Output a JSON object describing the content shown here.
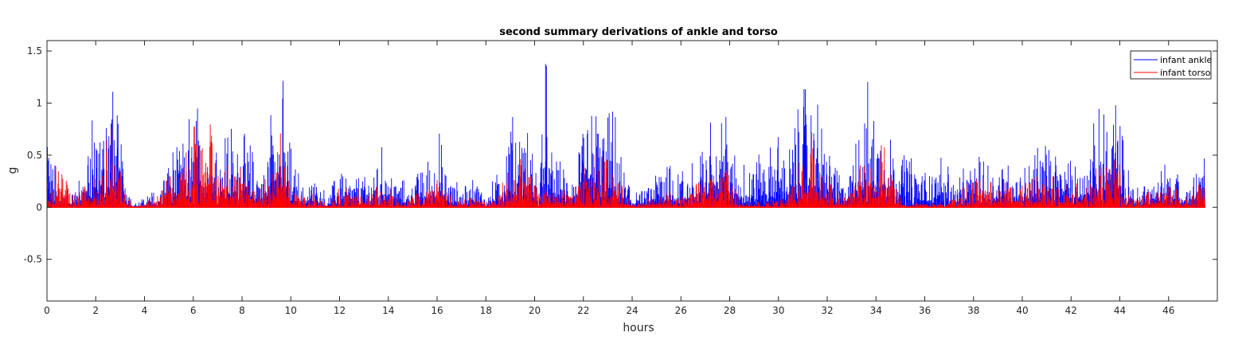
{
  "chart_data": {
    "type": "line",
    "title": "second summary derivations of ankle and torso",
    "xlabel": "hours",
    "ylabel": "g",
    "xlim": [
      0,
      48
    ],
    "ylim": [
      -0.9,
      1.6
    ],
    "x_ticks": [
      0,
      2,
      4,
      6,
      8,
      10,
      12,
      14,
      16,
      18,
      20,
      22,
      24,
      26,
      28,
      30,
      32,
      34,
      36,
      38,
      40,
      42,
      44,
      46
    ],
    "y_ticks": [
      -0.5,
      0,
      0.5,
      1,
      1.5
    ],
    "y_tick_labels": [
      "-0.5",
      "0",
      "0.5",
      "1",
      "1.5"
    ],
    "legend_position": "top-right",
    "grid": false,
    "series": [
      {
        "name": "infant ankle",
        "color": "#0000ff",
        "envelope": [
          [
            0.0,
            0.85
          ],
          [
            0.5,
            0.25
          ],
          [
            1.0,
            0.15
          ],
          [
            1.5,
            0.35
          ],
          [
            1.7,
            0.9
          ],
          [
            2.0,
            0.8
          ],
          [
            2.3,
            1.0
          ],
          [
            2.6,
            1.36
          ],
          [
            2.9,
            0.9
          ],
          [
            3.2,
            0.5
          ],
          [
            3.5,
            0.05
          ],
          [
            4.0,
            0.1
          ],
          [
            4.5,
            0.2
          ],
          [
            5.0,
            0.55
          ],
          [
            5.5,
            0.6
          ],
          [
            6.0,
            1.05
          ],
          [
            6.3,
            1.0
          ],
          [
            6.6,
            1.2
          ],
          [
            7.0,
            0.75
          ],
          [
            7.5,
            0.8
          ],
          [
            8.0,
            0.75
          ],
          [
            8.4,
            0.6
          ],
          [
            8.8,
            0.35
          ],
          [
            9.2,
            1.1
          ],
          [
            9.6,
            1.4
          ],
          [
            10.0,
            0.6
          ],
          [
            10.5,
            0.2
          ],
          [
            11.0,
            0.35
          ],
          [
            11.5,
            0.1
          ],
          [
            12.0,
            0.4
          ],
          [
            12.5,
            0.3
          ],
          [
            13.0,
            0.3
          ],
          [
            13.5,
            0.4
          ],
          [
            13.8,
            0.65
          ],
          [
            14.2,
            0.3
          ],
          [
            14.8,
            0.25
          ],
          [
            15.5,
            0.4
          ],
          [
            16.0,
            0.8
          ],
          [
            16.5,
            0.35
          ],
          [
            17.0,
            0.2
          ],
          [
            17.5,
            0.35
          ],
          [
            18.0,
            0.15
          ],
          [
            18.5,
            0.35
          ],
          [
            19.0,
            0.9
          ],
          [
            19.3,
            0.95
          ],
          [
            19.8,
            0.7
          ],
          [
            20.2,
            0.4
          ],
          [
            20.45,
            1.6
          ],
          [
            20.6,
            0.6
          ],
          [
            21.0,
            0.45
          ],
          [
            21.5,
            0.35
          ],
          [
            22.0,
            0.75
          ],
          [
            22.5,
            1.1
          ],
          [
            22.9,
            1.0
          ],
          [
            23.3,
            0.9
          ],
          [
            23.6,
            0.4
          ],
          [
            24.0,
            0.2
          ],
          [
            24.5,
            0.15
          ],
          [
            25.0,
            0.4
          ],
          [
            25.5,
            0.5
          ],
          [
            26.0,
            0.35
          ],
          [
            26.5,
            0.5
          ],
          [
            27.0,
            0.65
          ],
          [
            27.5,
            1.1
          ],
          [
            27.8,
            1.2
          ],
          [
            28.0,
            0.7
          ],
          [
            28.5,
            0.45
          ],
          [
            29.0,
            0.5
          ],
          [
            29.5,
            0.55
          ],
          [
            30.0,
            0.7
          ],
          [
            30.5,
            0.6
          ],
          [
            31.0,
            1.25
          ],
          [
            31.3,
            1.35
          ],
          [
            31.7,
            1.0
          ],
          [
            32.0,
            0.8
          ],
          [
            32.4,
            0.4
          ],
          [
            32.8,
            0.3
          ],
          [
            33.3,
            0.85
          ],
          [
            33.6,
            1.28
          ],
          [
            34.0,
            0.9
          ],
          [
            34.4,
            1.05
          ],
          [
            34.8,
            0.6
          ],
          [
            35.3,
            0.55
          ],
          [
            35.8,
            0.4
          ],
          [
            36.3,
            0.35
          ],
          [
            36.8,
            0.6
          ],
          [
            37.2,
            0.25
          ],
          [
            37.8,
            0.45
          ],
          [
            38.4,
            0.5
          ],
          [
            39.0,
            0.45
          ],
          [
            39.6,
            0.45
          ],
          [
            40.2,
            0.4
          ],
          [
            40.8,
            0.7
          ],
          [
            41.4,
            0.6
          ],
          [
            42.0,
            0.45
          ],
          [
            42.6,
            0.5
          ],
          [
            43.0,
            0.9
          ],
          [
            43.4,
            1.05
          ],
          [
            43.8,
            1.2
          ],
          [
            44.0,
            0.9
          ],
          [
            44.3,
            0.4
          ],
          [
            44.8,
            0.2
          ],
          [
            45.2,
            0.3
          ],
          [
            45.8,
            0.45
          ],
          [
            46.3,
            0.4
          ],
          [
            46.8,
            0.2
          ],
          [
            47.3,
            0.45
          ],
          [
            47.5,
            0.5
          ]
        ]
      },
      {
        "name": "infant torso",
        "color": "#ff0000",
        "envelope": [
          [
            0.0,
            0.25
          ],
          [
            0.5,
            0.55
          ],
          [
            1.0,
            0.12
          ],
          [
            1.5,
            0.2
          ],
          [
            1.7,
            0.4
          ],
          [
            2.0,
            0.35
          ],
          [
            2.3,
            0.45
          ],
          [
            2.6,
            0.95
          ],
          [
            2.9,
            0.5
          ],
          [
            3.2,
            0.2
          ],
          [
            3.5,
            0.02
          ],
          [
            4.0,
            0.05
          ],
          [
            4.5,
            0.1
          ],
          [
            5.0,
            0.3
          ],
          [
            5.5,
            0.35
          ],
          [
            6.0,
            0.98
          ],
          [
            6.3,
            0.8
          ],
          [
            6.6,
            0.95
          ],
          [
            7.0,
            0.5
          ],
          [
            7.5,
            0.45
          ],
          [
            8.0,
            0.4
          ],
          [
            8.4,
            0.35
          ],
          [
            8.8,
            0.2
          ],
          [
            9.2,
            0.6
          ],
          [
            9.6,
            0.85
          ],
          [
            10.0,
            0.25
          ],
          [
            10.5,
            0.1
          ],
          [
            11.0,
            0.15
          ],
          [
            11.5,
            0.05
          ],
          [
            12.0,
            0.2
          ],
          [
            12.5,
            0.2
          ],
          [
            13.0,
            0.15
          ],
          [
            13.5,
            0.25
          ],
          [
            13.8,
            0.35
          ],
          [
            14.2,
            0.15
          ],
          [
            14.8,
            0.1
          ],
          [
            15.5,
            0.2
          ],
          [
            16.0,
            0.3
          ],
          [
            16.5,
            0.15
          ],
          [
            17.0,
            0.1
          ],
          [
            17.5,
            0.15
          ],
          [
            18.0,
            0.05
          ],
          [
            18.5,
            0.15
          ],
          [
            19.0,
            0.45
          ],
          [
            19.3,
            0.5
          ],
          [
            19.8,
            0.35
          ],
          [
            20.2,
            0.15
          ],
          [
            20.45,
            0.35
          ],
          [
            20.6,
            0.2
          ],
          [
            21.0,
            0.2
          ],
          [
            21.5,
            0.15
          ],
          [
            22.0,
            0.4
          ],
          [
            22.5,
            0.55
          ],
          [
            22.9,
            0.5
          ],
          [
            23.3,
            0.45
          ],
          [
            23.6,
            0.2
          ],
          [
            24.0,
            0.08
          ],
          [
            24.5,
            0.05
          ],
          [
            25.0,
            0.15
          ],
          [
            25.5,
            0.2
          ],
          [
            26.0,
            0.1
          ],
          [
            26.5,
            0.2
          ],
          [
            27.0,
            0.3
          ],
          [
            27.5,
            0.65
          ],
          [
            27.8,
            0.55
          ],
          [
            28.0,
            0.3
          ],
          [
            28.5,
            0.06
          ],
          [
            29.0,
            0.06
          ],
          [
            29.5,
            0.06
          ],
          [
            30.0,
            0.06
          ],
          [
            30.5,
            0.25
          ],
          [
            31.0,
            0.6
          ],
          [
            31.3,
            0.75
          ],
          [
            31.7,
            0.55
          ],
          [
            32.0,
            0.35
          ],
          [
            32.4,
            0.15
          ],
          [
            32.8,
            0.1
          ],
          [
            33.3,
            0.4
          ],
          [
            33.6,
            0.45
          ],
          [
            34.0,
            0.35
          ],
          [
            34.4,
            0.92
          ],
          [
            34.8,
            0.2
          ],
          [
            35.3,
            0.05
          ],
          [
            35.8,
            0.05
          ],
          [
            36.3,
            0.05
          ],
          [
            36.8,
            0.05
          ],
          [
            37.2,
            0.1
          ],
          [
            37.8,
            0.25
          ],
          [
            38.4,
            0.3
          ],
          [
            39.0,
            0.25
          ],
          [
            39.6,
            0.3
          ],
          [
            40.2,
            0.25
          ],
          [
            40.8,
            0.35
          ],
          [
            41.4,
            0.3
          ],
          [
            42.0,
            0.25
          ],
          [
            42.6,
            0.3
          ],
          [
            43.0,
            0.45
          ],
          [
            43.4,
            0.5
          ],
          [
            43.8,
            0.55
          ],
          [
            44.0,
            0.5
          ],
          [
            44.3,
            0.2
          ],
          [
            44.8,
            0.1
          ],
          [
            45.2,
            0.15
          ],
          [
            45.8,
            0.2
          ],
          [
            46.3,
            0.2
          ],
          [
            46.8,
            0.1
          ],
          [
            47.3,
            0.3
          ],
          [
            47.5,
            0.35
          ]
        ],
        "baseline": 0.0
      }
    ]
  }
}
